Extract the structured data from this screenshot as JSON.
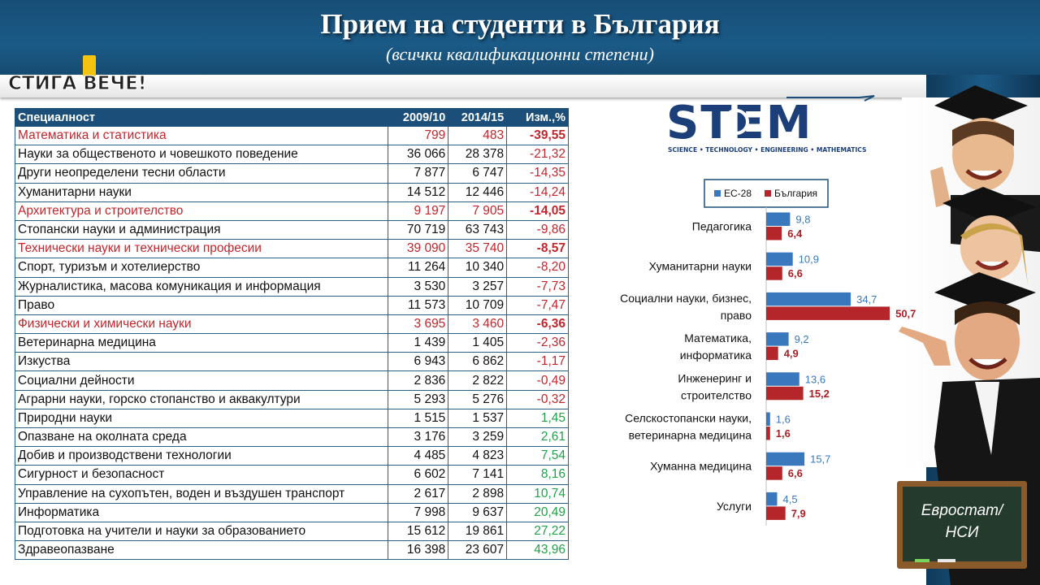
{
  "header": {
    "title": "Прием на студенти в България",
    "subtitle": "(всички квалификационни степени)"
  },
  "logo_text": "СТИГА ВЕЧЕ!",
  "table": {
    "columns": [
      "Специалност",
      "2009/10",
      "2014/15",
      "Изм.,%"
    ],
    "rows": [
      {
        "name": "Математика и статистика",
        "v2009": "799",
        "v2014": "483",
        "change": "-39,55",
        "highlight": true
      },
      {
        "name": "Науки за общественото и човешкото поведение",
        "v2009": "36 066",
        "v2014": "28 378",
        "change": "-21,32",
        "highlight": false
      },
      {
        "name": "Други неопределени тесни области",
        "v2009": "7 877",
        "v2014": "6 747",
        "change": "-14,35",
        "highlight": false
      },
      {
        "name": "Хуманитарни науки",
        "v2009": "14 512",
        "v2014": "12 446",
        "change": "-14,24",
        "highlight": false
      },
      {
        "name": "Архитектура и строителство",
        "v2009": "9 197",
        "v2014": "7 905",
        "change": "-14,05",
        "highlight": true
      },
      {
        "name": "Стопански науки и администрация",
        "v2009": "70 719",
        "v2014": "63 743",
        "change": "-9,86",
        "highlight": false
      },
      {
        "name": "Технически науки и технически професии",
        "v2009": "39 090",
        "v2014": "35 740",
        "change": "-8,57",
        "highlight": true
      },
      {
        "name": "Спорт, туризъм и хотелиерство",
        "v2009": "11 264",
        "v2014": "10 340",
        "change": "-8,20",
        "highlight": false
      },
      {
        "name": "Журналистика, масова комуникация и информация",
        "v2009": "3 530",
        "v2014": "3 257",
        "change": "-7,73",
        "highlight": false
      },
      {
        "name": "Право",
        "v2009": "11 573",
        "v2014": "10 709",
        "change": "-7,47",
        "highlight": false
      },
      {
        "name": "Физически и химически науки",
        "v2009": "3 695",
        "v2014": "3 460",
        "change": "-6,36",
        "highlight": true
      },
      {
        "name": "Ветеринарна медицина",
        "v2009": "1 439",
        "v2014": "1 405",
        "change": "-2,36",
        "highlight": false
      },
      {
        "name": "Изкуства",
        "v2009": "6 943",
        "v2014": "6 862",
        "change": "-1,17",
        "highlight": false
      },
      {
        "name": "Социални дейности",
        "v2009": "2 836",
        "v2014": "2 822",
        "change": "-0,49",
        "highlight": false
      },
      {
        "name": "Аграрни науки, горско стопанство и аквакултури",
        "v2009": "5 293",
        "v2014": "5 276",
        "change": "-0,32",
        "highlight": false
      },
      {
        "name": "Природни науки",
        "v2009": "1 515",
        "v2014": "1 537",
        "change": "1,45",
        "highlight": false
      },
      {
        "name": "Опазване на околната среда",
        "v2009": "3 176",
        "v2014": "3 259",
        "change": "2,61",
        "highlight": false
      },
      {
        "name": "Добив и производствени технологии",
        "v2009": "4 485",
        "v2014": "4 823",
        "change": "7,54",
        "highlight": false
      },
      {
        "name": "Сигурност и безопасност",
        "v2009": "6 602",
        "v2014": "7 141",
        "change": "8,16",
        "highlight": false
      },
      {
        "name": "Управление на сухопътен, воден и въздушен транспорт",
        "v2009": "2 617",
        "v2014": "2 898",
        "change": "10,74",
        "highlight": false
      },
      {
        "name": "Информатика",
        "v2009": "7 998",
        "v2014": "9 637",
        "change": "20,49",
        "highlight": false
      },
      {
        "name": "Подготовка на учители и науки за образованието",
        "v2009": "15 612",
        "v2014": "19 861",
        "change": "27,22",
        "highlight": false
      },
      {
        "name": "Здравеопазване",
        "v2009": "16 398",
        "v2014": "23 607",
        "change": "43,96",
        "highlight": false
      }
    ]
  },
  "stem": {
    "wordmark": "STEM",
    "tagline": "SCIENCE • TECHNOLOGY • ENGINEERING • MATHEMATICS"
  },
  "source": {
    "line1": "Евростат/",
    "line2": "НСИ"
  },
  "colors": {
    "eu": "#3a78bd",
    "bg": "#b5262b",
    "header": "#1b4f79"
  },
  "chart_data": {
    "type": "bar",
    "orientation": "horizontal",
    "categories": [
      [
        "Педагогика"
      ],
      [
        "Хуманитарни науки"
      ],
      [
        "Социални науки, бизнес,",
        "право"
      ],
      [
        "Математика,",
        "информатика"
      ],
      [
        "Инженеринг и",
        "строителство"
      ],
      [
        "Селскостопански науки,",
        "ветеринарна  медицина"
      ],
      [
        "Хуманна медицина"
      ],
      [
        "Услуги"
      ]
    ],
    "series": [
      {
        "name": "ЕС-28",
        "values": [
          9.8,
          10.9,
          34.7,
          9.2,
          13.6,
          1.6,
          15.7,
          4.5
        ],
        "labels": [
          "9,8",
          "10,9",
          "34,7",
          "9,2",
          "13,6",
          "1,6",
          "15,7",
          "4,5"
        ]
      },
      {
        "name": "България",
        "values": [
          6.4,
          6.6,
          50.7,
          4.9,
          15.2,
          1.6,
          6.6,
          7.9
        ],
        "labels": [
          "6,4",
          "6,6",
          "50,7",
          "4,9",
          "15,2",
          "1,6",
          "6,6",
          "7,9"
        ]
      }
    ],
    "legend": "top",
    "grid": false
  }
}
